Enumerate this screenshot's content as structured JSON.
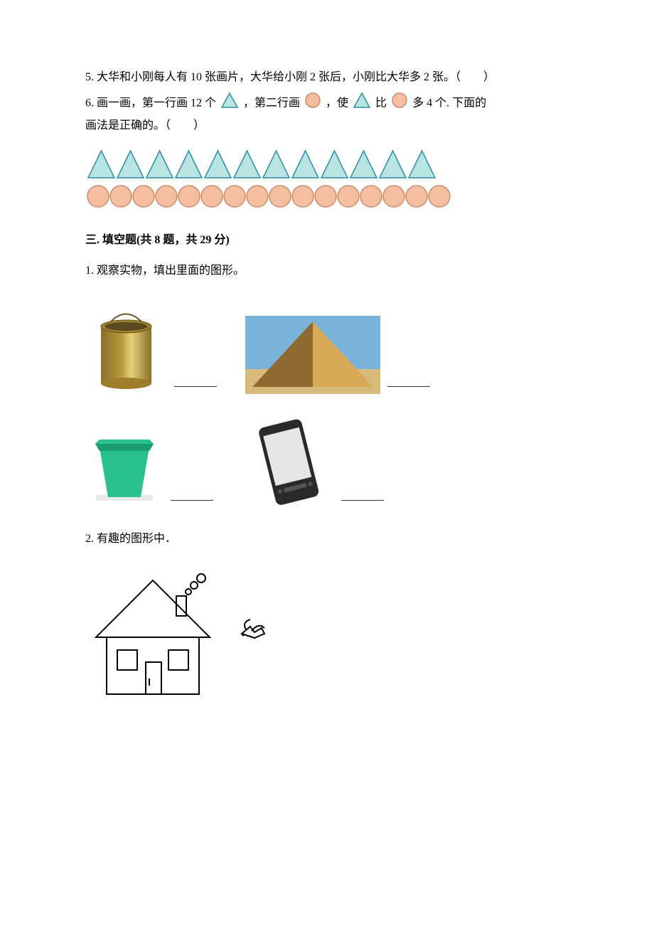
{
  "q5": {
    "text": "5. 大华和小刚每人有 10 张画片，大华给小刚 2 张后，小刚比大华多 2 张。（　　）"
  },
  "q6": {
    "line1_a": "6. 画一画，第一行画 12 个",
    "line1_b": "，第二行画",
    "line1_c": "，使",
    "line1_d": "比",
    "line1_e": "多 4 个. 下面的",
    "line2": "画法是正确的。（　　）",
    "triangle": {
      "fill": "#b8e4e2",
      "stroke": "#2d8fa8",
      "stroke_width": 1.5
    },
    "circle": {
      "fill": "#f4bfa0",
      "stroke": "#c98c6a",
      "stroke_width": 1.5
    },
    "row_tri": {
      "count": 12,
      "size": 41
    },
    "row_cir": {
      "count": 16,
      "size": 32
    }
  },
  "section3": {
    "title": "三. 填空题(共 8 题，共 29 分)"
  },
  "s3q1": {
    "text": "1. 观察实物，填出里面的图形。",
    "bucket": {
      "body": "#b9983f",
      "rim": "#9e7e2c",
      "handle_stroke": "#6a5320"
    },
    "pyramid": {
      "sky": "#79b3da",
      "sand": "#d8ba7b",
      "face_light": "#d8a957",
      "face_dark": "#8e6a30"
    },
    "pot": {
      "body": "#29c28e",
      "rim": "#1a9e70",
      "base": "#eaeaea"
    },
    "phone": {
      "body": "#2a2a2a",
      "screen": "#e6e6e6",
      "accent": "#555"
    }
  },
  "s3q2": {
    "text": "2. 有趣的图形中．",
    "stroke": "#000000"
  }
}
